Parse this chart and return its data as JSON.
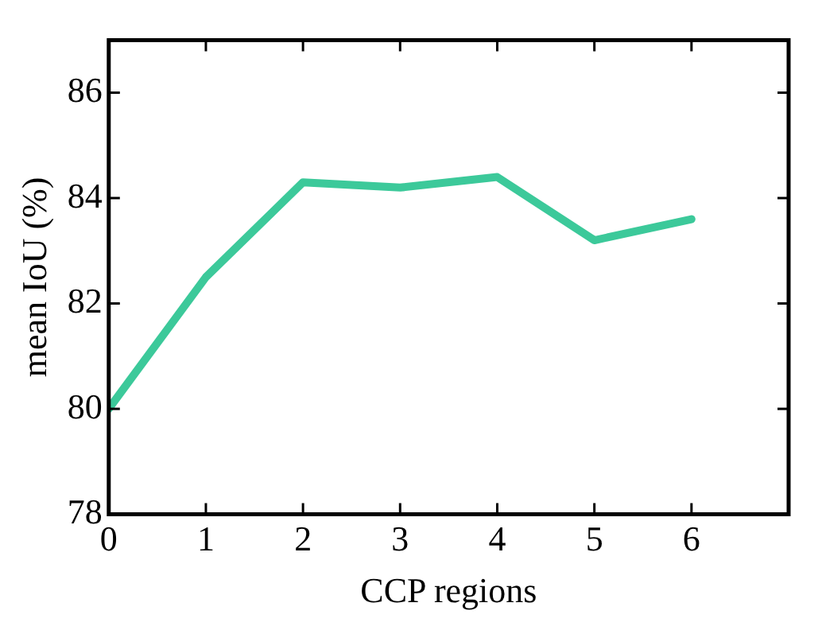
{
  "chart_data": {
    "type": "line",
    "xlabel": "CCP regions",
    "ylabel": "mean IoU (%)",
    "x": [
      0,
      1,
      2,
      3,
      4,
      5,
      6
    ],
    "series": [
      {
        "color": "#3cc99a",
        "values": [
          80.0,
          82.5,
          84.3,
          84.2,
          84.4,
          83.2,
          83.6
        ]
      }
    ],
    "xlim": [
      0,
      7
    ],
    "xticks": [
      0,
      1,
      2,
      3,
      4,
      5,
      6
    ],
    "ylim": [
      78,
      87
    ],
    "yticks": [
      78,
      80,
      82,
      84,
      86
    ],
    "grid": false,
    "legend": false,
    "marker": "none",
    "line_style": "solid"
  }
}
